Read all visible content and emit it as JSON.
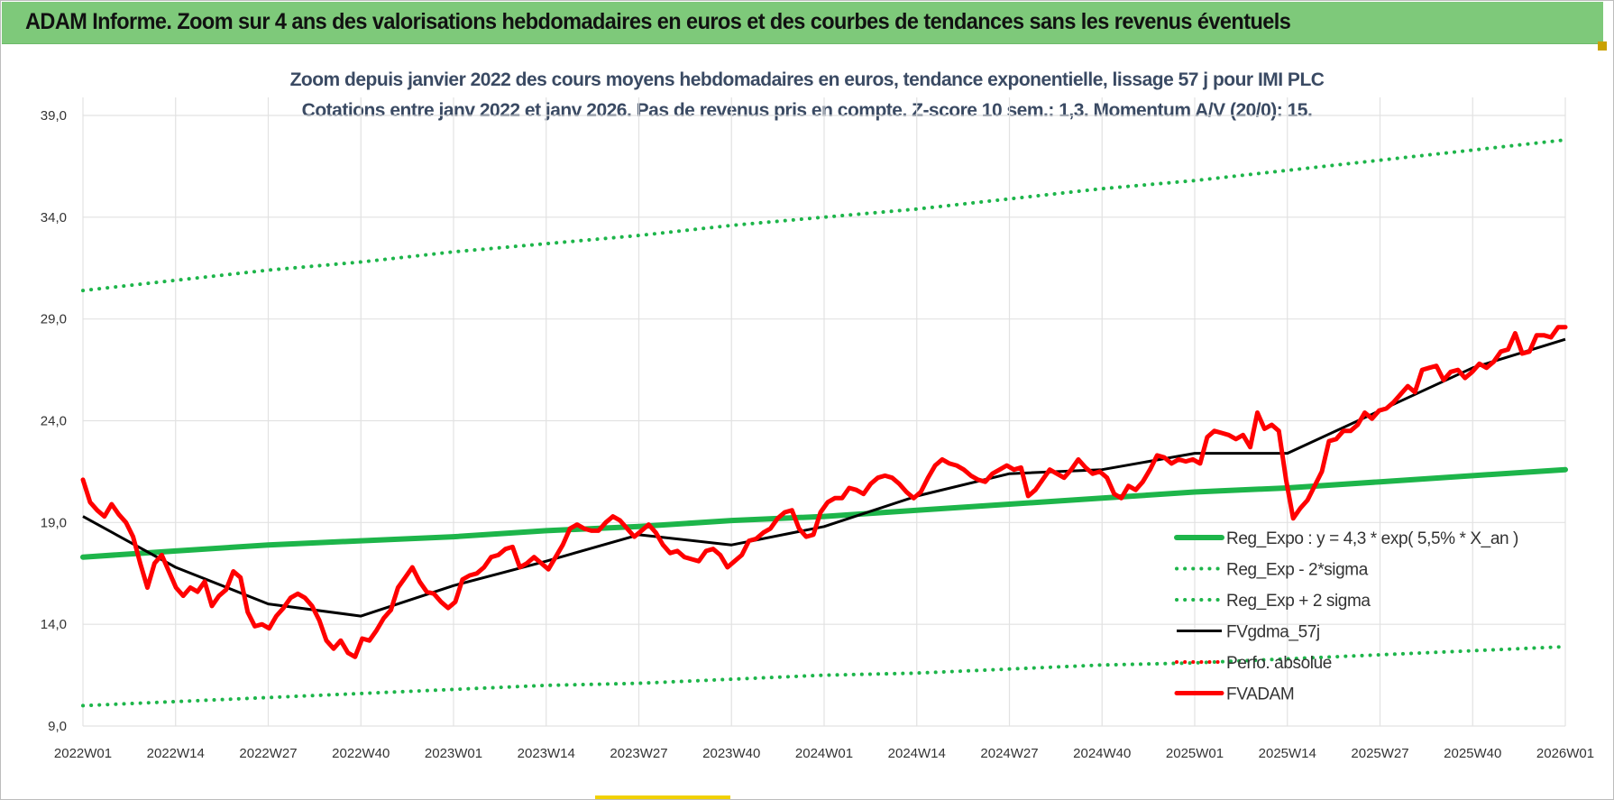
{
  "banner": {
    "title": "ADAM Informe. Zoom sur 4 ans des valorisations hebdomadaires en euros et des courbes de tendances sans les revenus éventuels"
  },
  "colors": {
    "banner_bg": "#7ec97a",
    "trend_green": "#1db54a",
    "price_red": "#ff0000",
    "smooth_black": "#000000",
    "grid": "#e2e2e2"
  },
  "chart_data": {
    "type": "line",
    "title": "Zoom depuis janvier 2022 des cours moyens hebdomadaires en euros, tendance exponentielle, lissage 57 j pour IMI PLC",
    "subtitle": "Cotations entre janv 2022 et janv 2026. Pas de revenus pris en compte. Z-score 10 sem.: 1,3. Momentum A/V (20/0): 15.",
    "x_ticks": [
      "2022W01",
      "2022W14",
      "2022W27",
      "2022W40",
      "2023W01",
      "2023W14",
      "2023W27",
      "2023W40",
      "2024W01",
      "2024W14",
      "2024W27",
      "2024W40",
      "2025W01",
      "2025W14",
      "2025W27",
      "2025W40",
      "2026W01"
    ],
    "y_ticks": [
      "9,0",
      "14,0",
      "19,0",
      "24,0",
      "29,0",
      "34,0",
      "39,0"
    ],
    "ylim": [
      9,
      39
    ],
    "grid": true,
    "legend_position": "bottom-right",
    "series": [
      {
        "name": "Reg_Expo : y = 4,3 * exp( 5,5% *  X_an )",
        "style": "solid-thick",
        "color": "#1db54a",
        "values": [
          17.3,
          17.6,
          17.9,
          18.1,
          18.3,
          18.6,
          18.8,
          19.1,
          19.3,
          19.6,
          19.9,
          20.2,
          20.5,
          20.7,
          21.0,
          21.3,
          21.6
        ]
      },
      {
        "name": "Reg_Exp - 2*sigma",
        "style": "dotted",
        "color": "#1db54a",
        "values": [
          10.0,
          10.2,
          10.4,
          10.6,
          10.8,
          11.0,
          11.1,
          11.3,
          11.5,
          11.6,
          11.8,
          12.0,
          12.1,
          12.3,
          12.5,
          12.7,
          12.9
        ]
      },
      {
        "name": "Reg_Exp + 2 sigma",
        "style": "dotted",
        "color": "#1db54a",
        "values": [
          30.4,
          30.9,
          31.4,
          31.8,
          32.3,
          32.7,
          33.1,
          33.6,
          34.0,
          34.4,
          34.9,
          35.4,
          35.8,
          36.3,
          36.8,
          37.3,
          37.8
        ]
      },
      {
        "name": "FVgdma_57j",
        "style": "solid",
        "color": "#000000",
        "values": [
          19.3,
          16.8,
          15.0,
          14.4,
          15.9,
          17.1,
          18.4,
          17.9,
          18.8,
          20.3,
          21.4,
          21.6,
          22.4,
          22.4,
          24.5,
          26.6,
          28.0
        ]
      },
      {
        "name": "Perfo. absolue",
        "style": "dotted",
        "color": "#ff0000",
        "values": []
      },
      {
        "name": "FVADAM",
        "style": "solid-thick",
        "color": "#ff0000",
        "values": [
          21.1,
          20.0,
          19.6,
          19.3,
          19.9,
          19.4,
          19.0,
          18.3,
          17.0,
          15.8,
          17.0,
          17.4,
          16.6,
          15.8,
          15.4,
          15.8,
          15.6,
          16.1,
          14.9,
          15.4,
          15.7,
          16.6,
          16.3,
          14.6,
          13.9,
          14.0,
          13.8,
          14.4,
          14.8,
          15.3,
          15.5,
          15.3,
          14.9,
          14.2,
          13.2,
          12.8,
          13.2,
          12.6,
          12.4,
          13.3,
          13.2,
          13.7,
          14.3,
          14.7,
          15.8,
          16.3,
          16.8,
          16.1,
          15.6,
          15.5,
          15.1,
          14.8,
          15.1,
          16.2,
          16.4,
          16.5,
          16.8,
          17.3,
          17.4,
          17.7,
          17.8,
          16.8,
          17.0,
          17.3,
          17.0,
          16.7,
          17.3,
          17.9,
          18.7,
          18.9,
          18.7,
          18.6,
          18.6,
          19.0,
          19.3,
          19.1,
          18.7,
          18.3,
          18.6,
          18.9,
          18.5,
          17.9,
          17.5,
          17.6,
          17.3,
          17.2,
          17.1,
          17.6,
          17.7,
          17.4,
          16.8,
          17.1,
          17.4,
          18.1,
          18.2,
          18.5,
          18.7,
          19.2,
          19.5,
          19.6,
          18.7,
          18.3,
          18.4,
          19.5,
          20.0,
          20.2,
          20.2,
          20.7,
          20.6,
          20.4,
          20.9,
          21.2,
          21.3,
          21.2,
          20.9,
          20.5,
          20.2,
          20.5,
          21.2,
          21.8,
          22.1,
          21.9,
          21.8,
          21.6,
          21.3,
          21.1,
          21.0,
          21.4,
          21.6,
          21.8,
          21.6,
          21.7,
          20.3,
          20.6,
          21.1,
          21.6,
          21.4,
          21.2,
          21.6,
          22.1,
          21.7,
          21.4,
          21.5,
          21.2,
          20.4,
          20.2,
          20.8,
          20.6,
          21.0,
          21.6,
          22.3,
          22.2,
          21.9,
          22.1,
          22.0,
          22.1,
          21.9,
          23.2,
          23.5,
          23.4,
          23.3,
          23.1,
          23.3,
          22.7,
          24.4,
          23.6,
          23.8,
          23.5,
          21.1,
          19.2,
          19.7,
          20.1,
          20.8,
          21.5,
          23.0,
          23.1,
          23.5,
          23.5,
          23.8,
          24.4,
          24.1,
          24.5,
          24.6,
          24.9,
          25.3,
          25.7,
          25.4,
          26.5,
          26.6,
          26.7,
          26.0,
          26.4,
          26.5,
          26.1,
          26.4,
          26.8,
          26.6,
          26.9,
          27.4,
          27.5,
          28.3,
          27.3,
          27.4,
          28.2,
          28.2,
          28.1,
          28.6,
          28.6
        ]
      }
    ]
  }
}
